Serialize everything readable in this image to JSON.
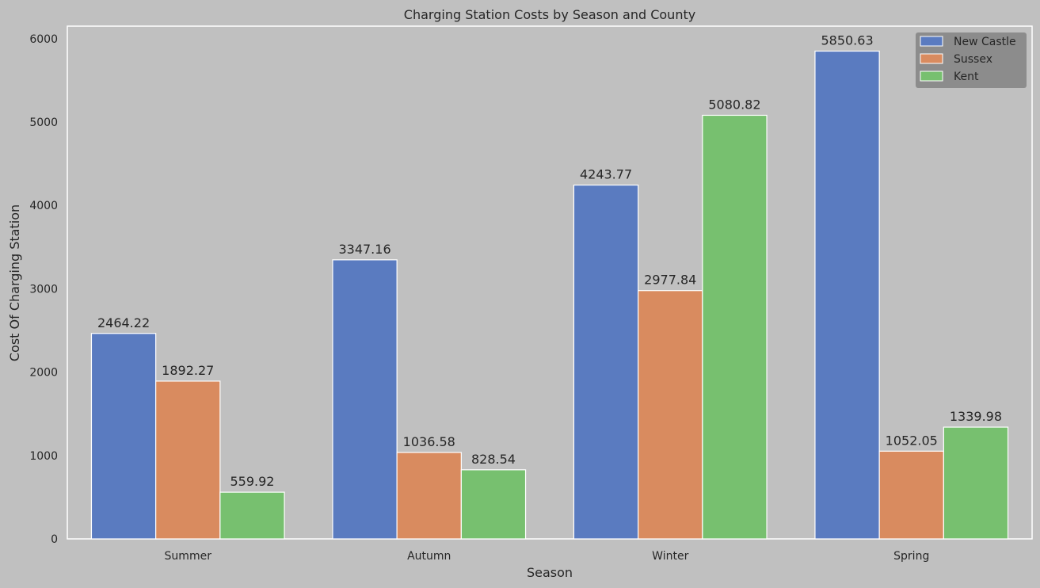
{
  "chart_data": {
    "type": "bar",
    "title": "Charging Station Costs by Season and County",
    "xlabel": "Season",
    "ylabel": "Cost Of Charging Station",
    "categories": [
      "Summer",
      "Autumn",
      "Winter",
      "Spring"
    ],
    "series": [
      {
        "name": "New Castle",
        "values": [
          2464.22,
          3347.16,
          4243.77,
          5850.63
        ]
      },
      {
        "name": "Sussex",
        "values": [
          1892.27,
          1036.58,
          2977.84,
          1052.05
        ]
      },
      {
        "name": "Kent",
        "values": [
          559.92,
          828.54,
          5080.82,
          1339.98
        ]
      }
    ],
    "ylim": [
      0,
      6150
    ],
    "yticks": [
      0,
      1000,
      2000,
      3000,
      4000,
      5000,
      6000
    ],
    "grid": false,
    "legend_position": "top-right",
    "colors": {
      "background": "#c0c0c0",
      "series": [
        "#5a7bc0",
        "#d98b5f",
        "#77c06f"
      ],
      "legend_background": "#8c8c8c",
      "axes_edge": "#ffffff"
    }
  }
}
